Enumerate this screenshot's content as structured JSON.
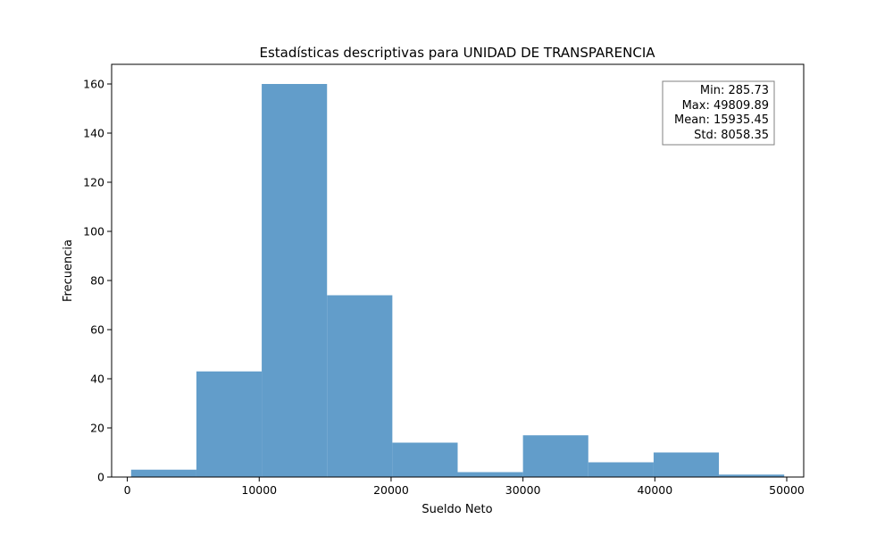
{
  "chart_data": {
    "type": "bar",
    "title": "Estadísticas descriptivas para UNIDAD DE TRANSPARENCIA",
    "xlabel": "Sueldo Neto",
    "ylabel": "Frecuencia",
    "xlim": [
      -1190.5,
      51285.9
    ],
    "ylim": [
      0,
      168
    ],
    "x_ticks": [
      0,
      10000,
      20000,
      30000,
      40000,
      50000
    ],
    "y_ticks": [
      0,
      20,
      40,
      60,
      80,
      100,
      120,
      140,
      160
    ],
    "bins": [
      {
        "start": 285.73,
        "end": 5238.15,
        "count": 3
      },
      {
        "start": 5238.15,
        "end": 10190.56,
        "count": 43
      },
      {
        "start": 10190.56,
        "end": 15142.98,
        "count": 160
      },
      {
        "start": 15142.98,
        "end": 20095.4,
        "count": 74
      },
      {
        "start": 20095.4,
        "end": 25047.81,
        "count": 14
      },
      {
        "start": 25047.81,
        "end": 30000.23,
        "count": 2
      },
      {
        "start": 30000.23,
        "end": 34952.64,
        "count": 17
      },
      {
        "start": 34952.64,
        "end": 39905.06,
        "count": 6
      },
      {
        "start": 39905.06,
        "end": 44857.48,
        "count": 10
      },
      {
        "start": 44857.48,
        "end": 49809.89,
        "count": 1
      }
    ],
    "bar_color": "#4c8fc3",
    "stats_box": {
      "position": "top-right",
      "lines": [
        "Min: 285.73",
        "Max: 49809.89",
        "Mean: 15935.45",
        "Std: 8058.35"
      ]
    },
    "grid": false
  }
}
